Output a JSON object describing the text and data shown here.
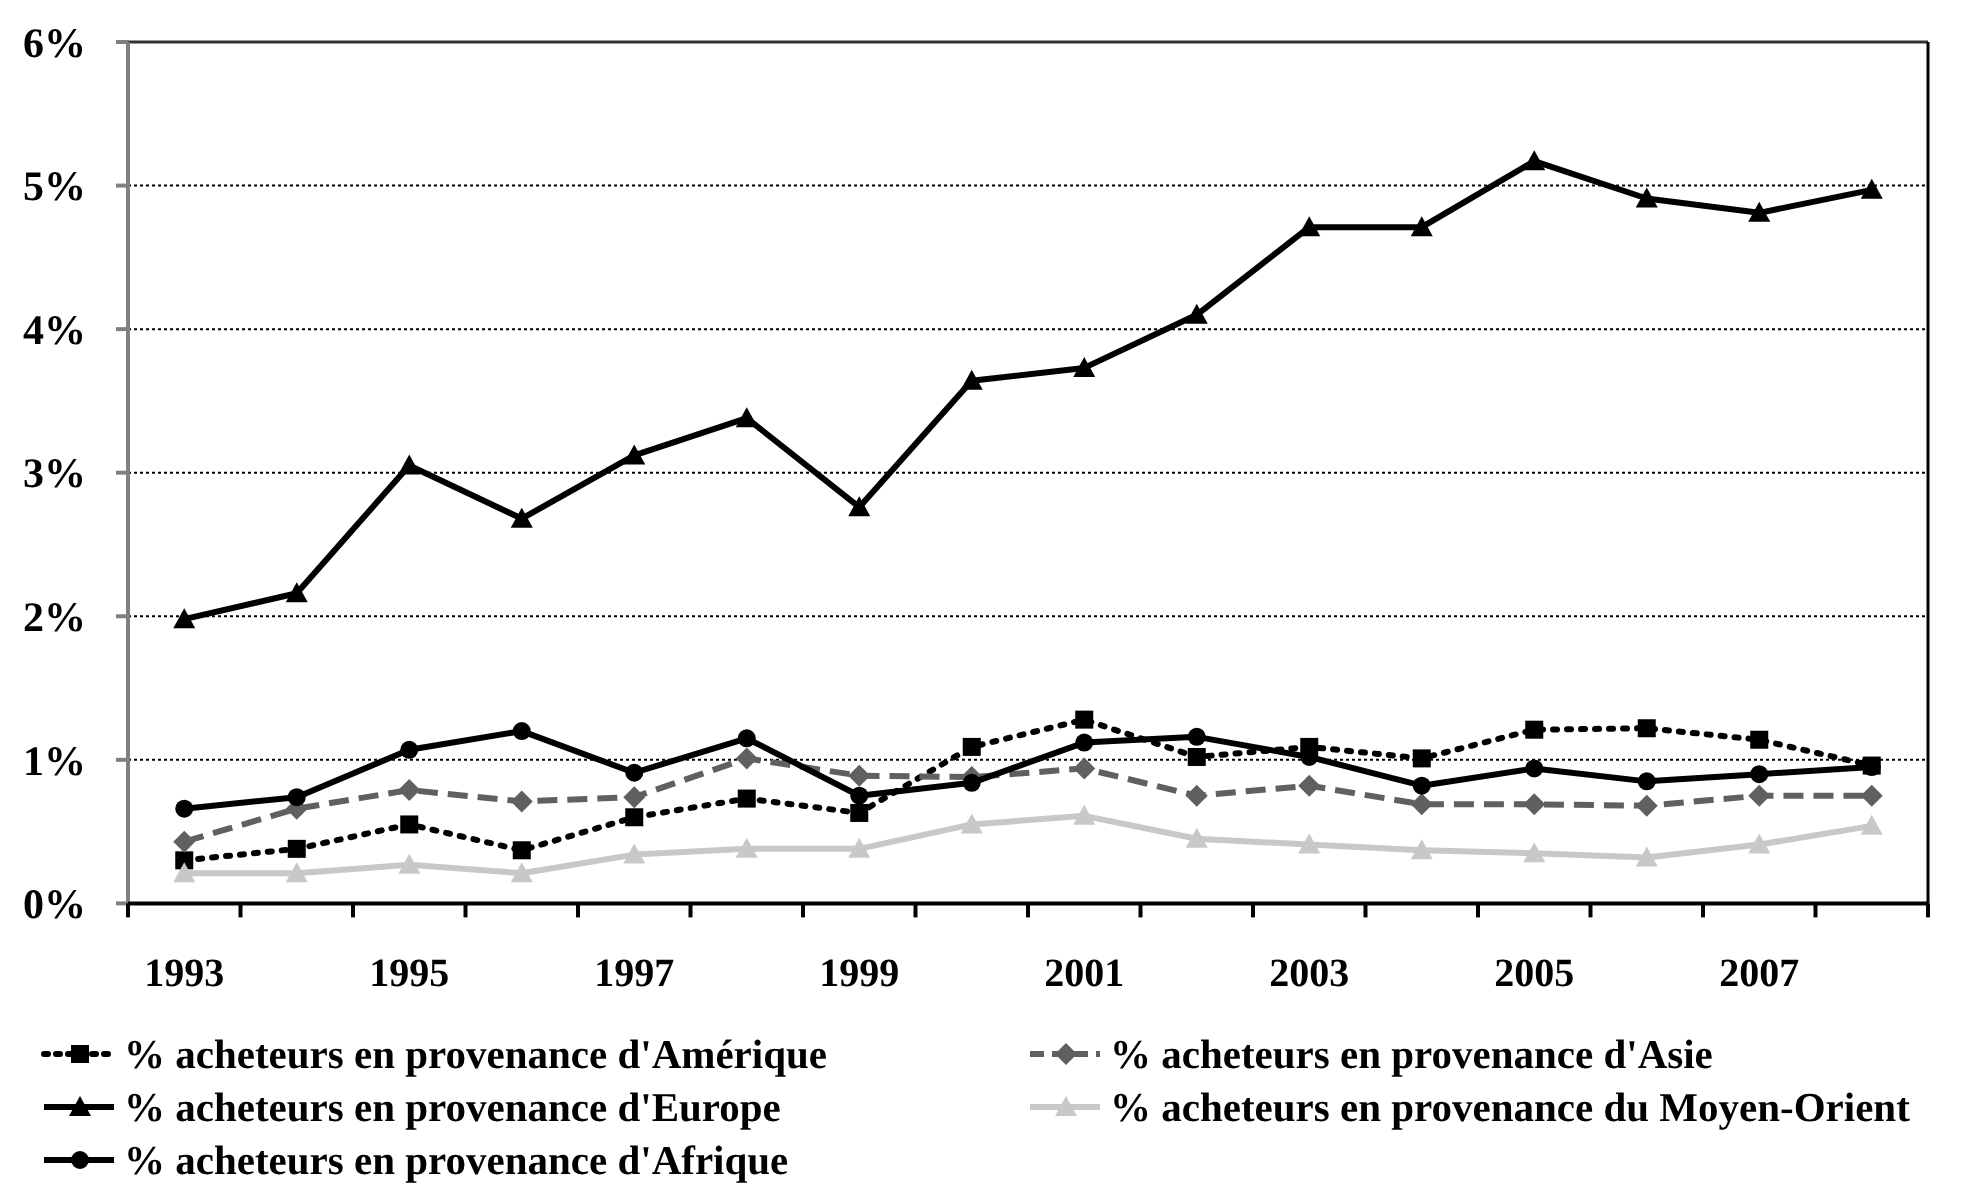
{
  "chart_data": {
    "type": "line",
    "categories": [
      "1993",
      null,
      "1995",
      null,
      "1997",
      null,
      "1999",
      null,
      "2001",
      null,
      "2003",
      null,
      "2005",
      null,
      "2007",
      null
    ],
    "series": [
      {
        "name": "% acheteurs en provenance d'Amérique",
        "color": "#000000",
        "marker": "square",
        "line_style": "dotted",
        "values": [
          0.3,
          0.38,
          0.55,
          0.37,
          0.6,
          0.73,
          0.63,
          1.09,
          1.28,
          1.02,
          1.09,
          1.01,
          1.21,
          1.22,
          1.14,
          0.96
        ]
      },
      {
        "name": "% acheteurs en provenance d'Asie",
        "color": "#606060",
        "marker": "diamond",
        "line_style": "dashed",
        "values": [
          0.43,
          0.66,
          0.79,
          0.71,
          0.74,
          1.01,
          0.89,
          0.88,
          0.94,
          0.75,
          0.82,
          0.69,
          0.69,
          0.68,
          0.75,
          0.75
        ]
      },
      {
        "name": "% acheteurs en provenance d'Europe",
        "color": "#000000",
        "marker": "triangle",
        "line_style": "solid",
        "values": [
          1.98,
          2.16,
          3.05,
          2.68,
          3.12,
          3.38,
          2.76,
          3.64,
          3.73,
          4.1,
          4.71,
          4.71,
          5.17,
          4.91,
          4.81,
          4.97
        ]
      },
      {
        "name": "% acheteurs en provenance du Moyen-Orient",
        "color": "#c8c8c8",
        "marker": "triangle",
        "line_style": "solid",
        "values": [
          0.21,
          0.21,
          0.27,
          0.21,
          0.34,
          0.38,
          0.38,
          0.55,
          0.61,
          0.45,
          0.41,
          0.37,
          0.35,
          0.32,
          0.41,
          0.54
        ]
      },
      {
        "name": "% acheteurs en provenance d'Afrique",
        "color": "#000000",
        "marker": "circle",
        "line_style": "solid",
        "values": [
          0.66,
          0.74,
          1.07,
          1.2,
          0.91,
          1.15,
          0.75,
          0.84,
          1.12,
          1.16,
          1.02,
          0.82,
          0.94,
          0.85,
          0.9,
          0.95
        ]
      }
    ],
    "ylim": [
      0,
      6
    ],
    "yticks": [
      {
        "value": 0,
        "label": "0%"
      },
      {
        "value": 1,
        "label": "1%"
      },
      {
        "value": 2,
        "label": "2%"
      },
      {
        "value": 3,
        "label": "3%"
      },
      {
        "value": 4,
        "label": "4%"
      },
      {
        "value": 5,
        "label": "5%"
      },
      {
        "value": 6,
        "label": "6%"
      }
    ],
    "grid": "y",
    "legend": "bottom"
  }
}
